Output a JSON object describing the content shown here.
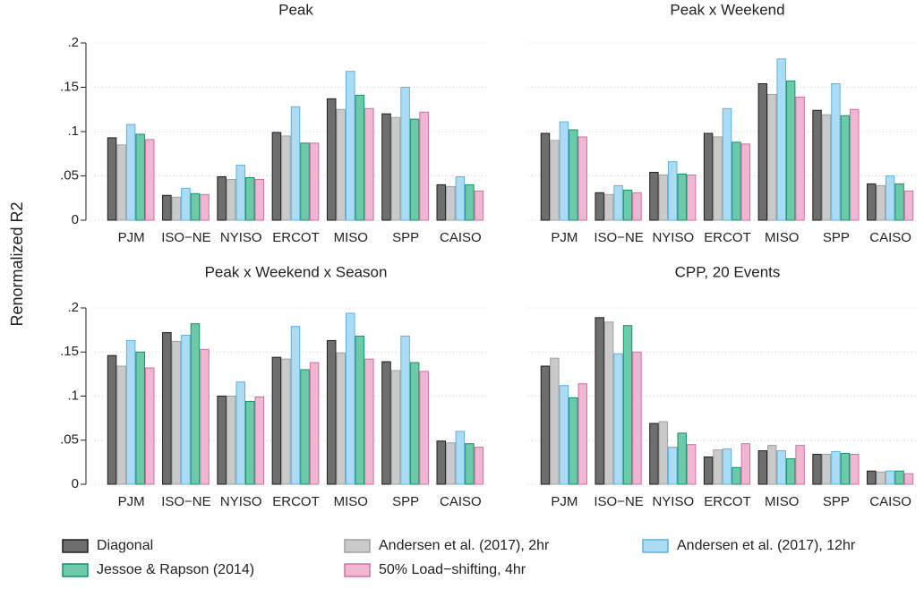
{
  "y_axis_label": "Renormalized R2",
  "legend": [
    {
      "name": "Diagonal",
      "color": "#6e6e6e",
      "edge": "#1e1e1e"
    },
    {
      "name": "Andersen et al. (2017), 2hr",
      "color": "#cacaca",
      "edge": "#a0a0a0"
    },
    {
      "name": "Andersen et al. (2017), 12hr",
      "color": "#acdcf4",
      "edge": "#5cb4e4"
    },
    {
      "name": "Jessoe & Rapson (2014)",
      "color": "#6ccaa8",
      "edge": "#17906c"
    },
    {
      "name": "50% Load−shifting, 4hr",
      "color": "#f0b6d2",
      "edge": "#d070a6"
    }
  ],
  "chart_data": [
    {
      "type": "bar",
      "title": "Peak",
      "categories": [
        "PJM",
        "ISO−NE",
        "NYISO",
        "ERCOT",
        "MISO",
        "SPP",
        "CAISO"
      ],
      "series": [
        {
          "values": [
            0.093,
            0.028,
            0.049,
            0.099,
            0.137,
            0.12,
            0.04
          ]
        },
        {
          "values": [
            0.085,
            0.026,
            0.046,
            0.095,
            0.125,
            0.116,
            0.038
          ]
        },
        {
          "values": [
            0.108,
            0.036,
            0.062,
            0.128,
            0.168,
            0.15,
            0.049
          ]
        },
        {
          "values": [
            0.097,
            0.03,
            0.048,
            0.087,
            0.141,
            0.114,
            0.04
          ]
        },
        {
          "values": [
            0.091,
            0.029,
            0.046,
            0.087,
            0.126,
            0.122,
            0.033
          ]
        }
      ],
      "ylim": [
        0,
        0.2
      ],
      "yticks": [
        0,
        {
          "value": 0.05,
          "label": ".05"
        },
        {
          "value": 0.1,
          "label": ".1"
        },
        {
          "value": 0.15,
          "label": ".15"
        },
        {
          "value": 0.2,
          "label": ".2"
        }
      ],
      "ytick_labels": true,
      "grid": true
    },
    {
      "type": "bar",
      "title": "Peak x Weekend",
      "categories": [
        "PJM",
        "ISO−NE",
        "NYISO",
        "ERCOT",
        "MISO",
        "SPP",
        "CAISO"
      ],
      "series": [
        {
          "values": [
            0.098,
            0.031,
            0.054,
            0.098,
            0.154,
            0.124,
            0.041
          ]
        },
        {
          "values": [
            0.09,
            0.029,
            0.051,
            0.094,
            0.142,
            0.119,
            0.039
          ]
        },
        {
          "values": [
            0.111,
            0.039,
            0.066,
            0.126,
            0.182,
            0.154,
            0.05
          ]
        },
        {
          "values": [
            0.102,
            0.034,
            0.052,
            0.088,
            0.157,
            0.118,
            0.041
          ]
        },
        {
          "values": [
            0.094,
            0.031,
            0.051,
            0.086,
            0.139,
            0.125,
            0.033
          ]
        }
      ],
      "ylim": [
        0,
        0.2
      ],
      "yticks": [
        0,
        0.05,
        0.1,
        0.15,
        0.2
      ],
      "ytick_labels": false,
      "grid": true
    },
    {
      "type": "bar",
      "title": "Peak x Weekend x Season",
      "categories": [
        "PJM",
        "ISO−NE",
        "NYISO",
        "ERCOT",
        "MISO",
        "SPP",
        "CAISO"
      ],
      "series": [
        {
          "values": [
            0.146,
            0.172,
            0.1,
            0.144,
            0.163,
            0.139,
            0.049
          ]
        },
        {
          "values": [
            0.134,
            0.162,
            0.1,
            0.142,
            0.149,
            0.129,
            0.047
          ]
        },
        {
          "values": [
            0.163,
            0.169,
            0.116,
            0.179,
            0.194,
            0.168,
            0.06
          ]
        },
        {
          "values": [
            0.15,
            0.182,
            0.094,
            0.13,
            0.168,
            0.138,
            0.046
          ]
        },
        {
          "values": [
            0.132,
            0.153,
            0.099,
            0.138,
            0.142,
            0.128,
            0.042
          ]
        }
      ],
      "ylim": [
        0,
        0.2
      ],
      "yticks": [
        0,
        {
          "value": 0.05,
          "label": ".05"
        },
        {
          "value": 0.1,
          "label": ".1"
        },
        {
          "value": 0.15,
          "label": ".15"
        },
        {
          "value": 0.2,
          "label": ".2"
        }
      ],
      "ytick_labels": true,
      "grid": true
    },
    {
      "type": "bar",
      "title": "CPP, 20 Events",
      "categories": [
        "PJM",
        "ISO−NE",
        "NYISO",
        "ERCOT",
        "MISO",
        "SPP",
        "CAISO"
      ],
      "series": [
        {
          "values": [
            0.134,
            0.189,
            0.069,
            0.031,
            0.038,
            0.034,
            0.015
          ]
        },
        {
          "values": [
            0.143,
            0.184,
            0.071,
            0.039,
            0.044,
            0.034,
            0.014
          ]
        },
        {
          "values": [
            0.112,
            0.148,
            0.042,
            0.04,
            0.038,
            0.037,
            0.015
          ]
        },
        {
          "values": [
            0.098,
            0.18,
            0.058,
            0.019,
            0.029,
            0.035,
            0.015
          ]
        },
        {
          "values": [
            0.114,
            0.15,
            0.045,
            0.046,
            0.044,
            0.034,
            0.012
          ]
        }
      ],
      "ylim": [
        0,
        0.2
      ],
      "yticks": [
        0,
        0.05,
        0.1,
        0.15,
        0.2
      ],
      "ytick_labels": false,
      "grid": true
    }
  ]
}
